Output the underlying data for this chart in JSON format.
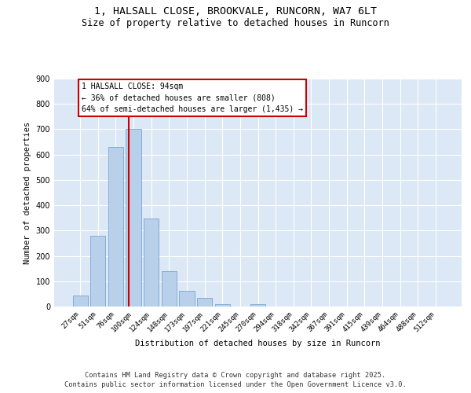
{
  "title_line1": "1, HALSALL CLOSE, BROOKVALE, RUNCORN, WA7 6LT",
  "title_line2": "Size of property relative to detached houses in Runcorn",
  "xlabel": "Distribution of detached houses by size in Runcorn",
  "ylabel": "Number of detached properties",
  "categories": [
    "27sqm",
    "51sqm",
    "76sqm",
    "100sqm",
    "124sqm",
    "148sqm",
    "173sqm",
    "197sqm",
    "221sqm",
    "245sqm",
    "270sqm",
    "294sqm",
    "318sqm",
    "342sqm",
    "367sqm",
    "391sqm",
    "415sqm",
    "439sqm",
    "464sqm",
    "488sqm",
    "512sqm"
  ],
  "values": [
    42,
    280,
    630,
    700,
    348,
    140,
    63,
    35,
    10,
    0,
    10,
    0,
    0,
    0,
    0,
    0,
    0,
    0,
    0,
    0,
    0
  ],
  "bar_color": "#b8d0ea",
  "bar_edge_color": "#6699cc",
  "vline_color": "#cc0000",
  "annotation_text": "1 HALSALL CLOSE: 94sqm\n← 36% of detached houses are smaller (808)\n64% of semi-detached houses are larger (1,435) →",
  "annotation_box_color": "#ffffff",
  "annotation_box_edge_color": "#cc0000",
  "ylim_max": 900,
  "yticks": [
    0,
    100,
    200,
    300,
    400,
    500,
    600,
    700,
    800,
    900
  ],
  "background_color": "#dce8f5",
  "grid_color": "#ffffff",
  "footer": "Contains HM Land Registry data © Crown copyright and database right 2025.\nContains public sector information licensed under the Open Government Licence v3.0.",
  "vline_index": 2.75
}
